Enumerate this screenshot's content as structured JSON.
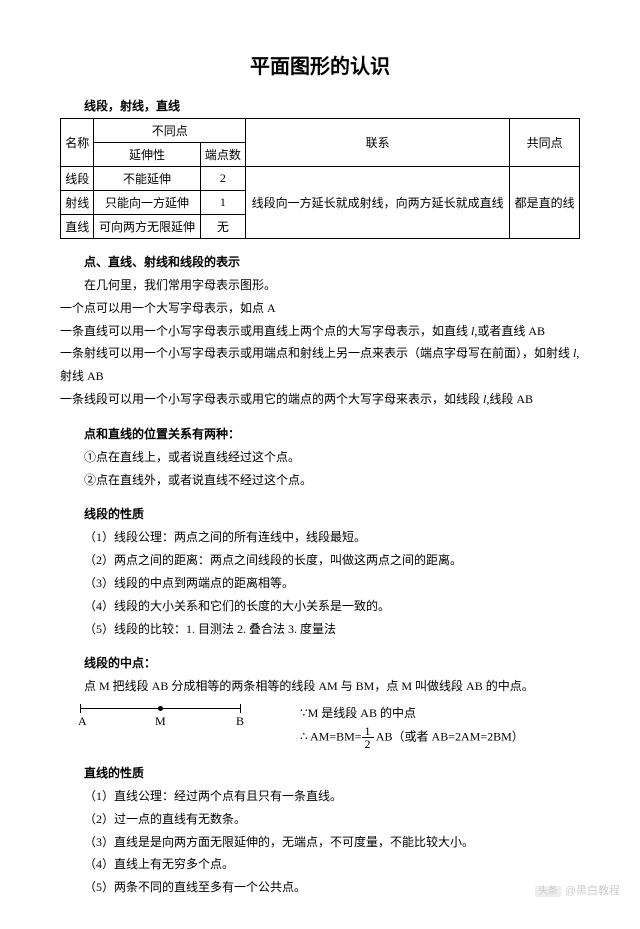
{
  "title": "平面图形的认识",
  "sectionA": "线段，射线，直线",
  "table": {
    "headers": {
      "name": "名称",
      "diff": "不同点",
      "ext": "延伸性",
      "ep": "端点数",
      "rel": "联系",
      "com": "共同点"
    },
    "rows": [
      {
        "name": "线段",
        "ext": "不能延伸",
        "ep": "2"
      },
      {
        "name": "射线",
        "ext": "只能向一方延伸",
        "ep": "1"
      },
      {
        "name": "直线",
        "ext": "可向两方无限延伸",
        "ep": "无"
      }
    ],
    "rel": "线段向一方延长就成射线，向两方延长就成直线",
    "com": "都是直的线"
  },
  "sectionB": "点、直线、射线和线段的表示",
  "b0": "在几何里，我们常用字母表示图形。",
  "b1": "一个点可以用一个大写字母表示，如点 A",
  "b2a": "一条直线可以用一个小写字母表示或用直线上两个点的大写字母表示，如直线 ",
  "b2b": "l,",
  "b2c": "或者直线 AB",
  "b3a": "一条射线可以用一个小写字母表示或用端点和射线上另一点来表示（端点字母写在前面），如射线 ",
  "b3b": "l,",
  "b3c": "射线 AB",
  "b4a": "一条线段可以用一个小写字母表示或用它的端点的两个大写字母来表示，如线段 ",
  "b4b": "l,",
  "b4c": "线段 AB",
  "sectionC": "点和直线的位置关系有两种：",
  "c1": "①点在直线上，或者说直线经过这个点。",
  "c2": "②点在直线外，或者说直线不经过这个点。",
  "sectionD": "线段的性质",
  "d1": "（1）线段公理：两点之间的所有连线中，线段最短。",
  "d2": "（2）两点之间的距离：两点之间线段的长度，叫做这两点之间的距离。",
  "d3": "（3）线段的中点到两端点的距离相等。",
  "d4": "（4）线段的大小关系和它们的长度的大小关系是一致的。",
  "d5": "（5）线段的比较：1. 目测法  2. 叠合法  3. 度量法",
  "sectionE": "线段的中点：",
  "e1": "点 M 把线段 AB 分成相等的两条相等的线段 AM 与 BM，点 M 叫做线段 AB 的中点。",
  "diagram": {
    "A": "A",
    "M": "M",
    "B": "B"
  },
  "formula": {
    "top": "∵M 是线段 AB 的中点",
    "mid": "∴ AM=BM=",
    "half_n": "1",
    "half_d": "2",
    "mid2": " AB（或者 AB=2AM=2BM）"
  },
  "sectionF": "直线的性质",
  "f1": "（1）直线公理：经过两个点有且只有一条直线。",
  "f2": "（2）过一点的直线有无数条。",
  "f3": "（3）直线是是向两方面无限延伸的，无端点，不可度量，不能比较大小。",
  "f4": "（4）直线上有无穷多个点。",
  "f5": "（5）两条不同的直线至多有一个公共点。",
  "watermark": {
    "at": "头条",
    "name": "@黑白教程"
  }
}
